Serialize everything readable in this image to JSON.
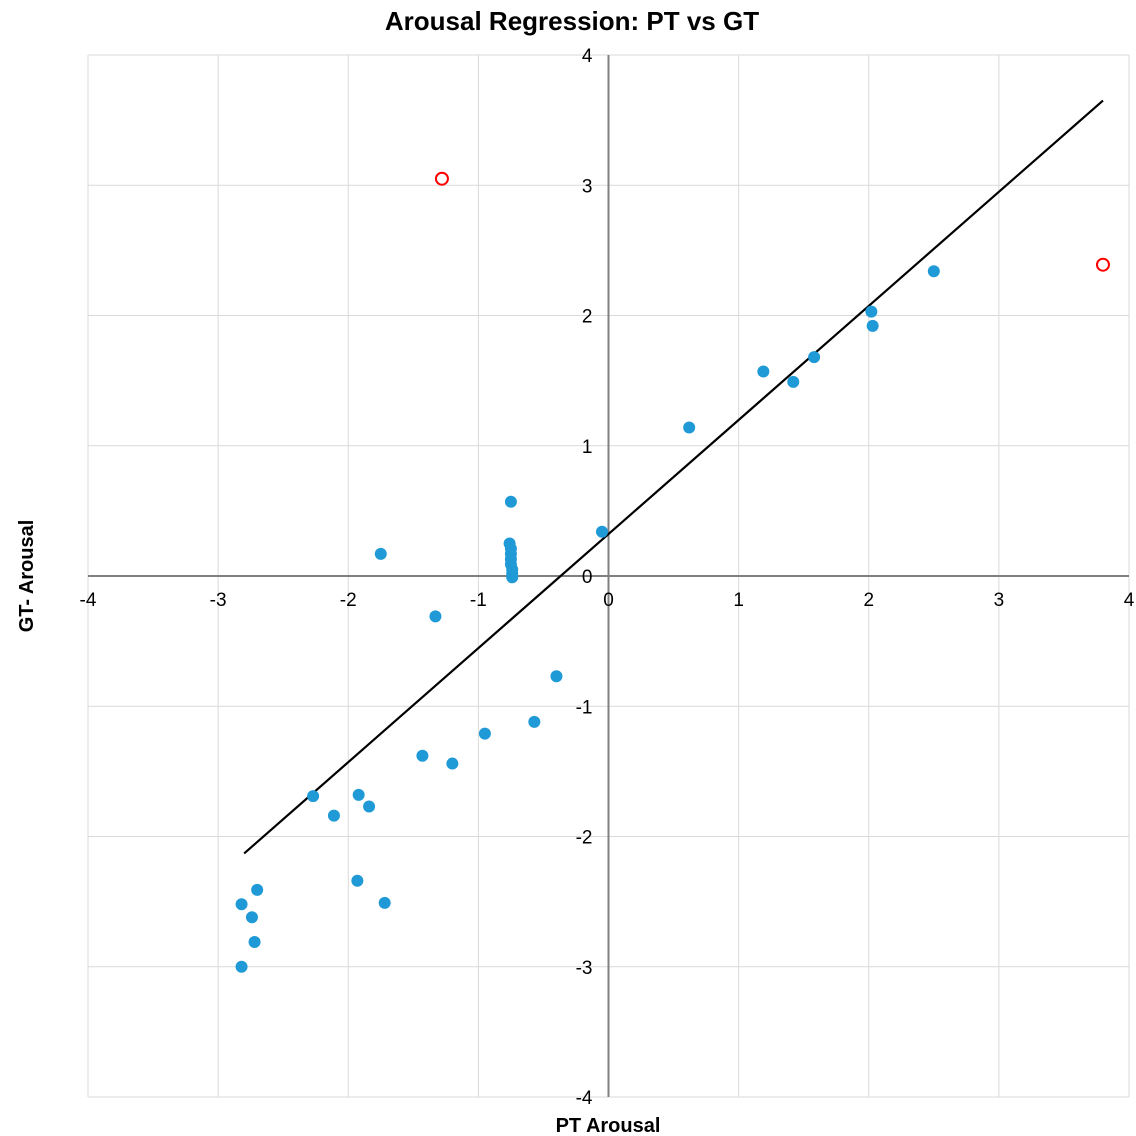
{
  "chart_data": {
    "type": "scatter",
    "title": "Arousal Regression: PT vs GT",
    "xlabel": "PT Arousal",
    "ylabel": "GT- Arousal",
    "xlim": [
      -4,
      4
    ],
    "ylim": [
      -4,
      4
    ],
    "x_ticks": [
      "-4",
      "-3",
      "-2",
      "-1",
      "0",
      "1",
      "2",
      "3",
      "4"
    ],
    "y_ticks": [
      "4",
      "3",
      "2",
      "1",
      "0",
      "-1",
      "-2",
      "-3",
      "-4"
    ],
    "grid": true,
    "colors": {
      "points": "#1f9ad6",
      "outliers": "#ff0000",
      "line": "#000000",
      "grid": "#d9d9d9",
      "axis": "#808080"
    },
    "series": [
      {
        "points": [
          [
            -2.82,
            -3.0
          ],
          [
            -2.72,
            -2.81
          ],
          [
            -2.74,
            -2.62
          ],
          [
            -2.82,
            -2.52
          ],
          [
            -2.7,
            -2.41
          ],
          [
            -2.27,
            -1.69
          ],
          [
            -2.11,
            -1.84
          ],
          [
            -1.92,
            -1.68
          ],
          [
            -1.84,
            -1.77
          ],
          [
            -1.93,
            -2.34
          ],
          [
            -1.72,
            -2.51
          ],
          [
            -1.43,
            -1.38
          ],
          [
            -1.2,
            -1.44
          ],
          [
            -0.95,
            -1.21
          ],
          [
            -0.57,
            -1.12
          ],
          [
            -0.4,
            -0.77
          ],
          [
            -1.33,
            -0.31
          ],
          [
            -1.75,
            0.17
          ],
          [
            -0.75,
            0.57
          ],
          [
            -0.76,
            0.25
          ],
          [
            -0.75,
            0.21
          ],
          [
            -0.75,
            0.17
          ],
          [
            -0.75,
            0.13
          ],
          [
            -0.75,
            0.09
          ],
          [
            -0.74,
            0.05
          ],
          [
            -0.74,
            0.02
          ],
          [
            -0.74,
            -0.01
          ],
          [
            -0.05,
            0.34
          ],
          [
            0.62,
            1.14
          ],
          [
            1.19,
            1.57
          ],
          [
            1.42,
            1.49
          ],
          [
            1.58,
            1.68
          ],
          [
            2.02,
            2.03
          ],
          [
            2.03,
            1.92
          ],
          [
            2.5,
            2.34
          ]
        ]
      },
      {
        "points": [
          [
            -1.28,
            3.05
          ],
          [
            3.8,
            2.39
          ]
        ]
      }
    ],
    "trendline": {
      "x": [
        -2.8,
        3.8
      ],
      "y": [
        -2.13,
        3.65
      ]
    }
  }
}
